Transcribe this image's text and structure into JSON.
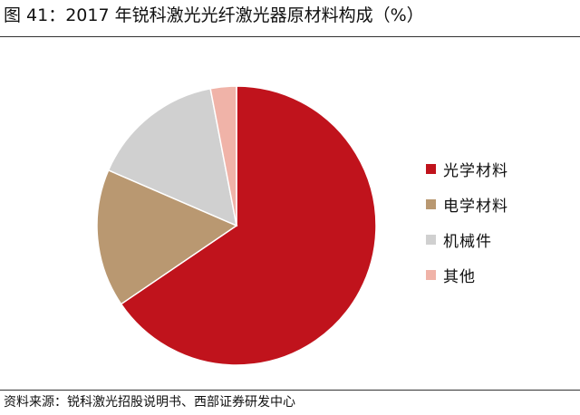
{
  "title": "图 41：2017 年锐科激光光纤激光器原材料构成（%）",
  "source": "资料来源：锐科激光招股说明书、西部证券研发中心",
  "chart_data": {
    "type": "pie",
    "categories": [
      "光学材料",
      "电学材料",
      "机械件",
      "其他"
    ],
    "values": [
      65.5,
      16.0,
      15.5,
      3.0
    ],
    "colors": [
      "#c0131c",
      "#b99871",
      "#d0d0d0",
      "#f0b3a8"
    ],
    "start_angle": "top, clockwise",
    "legend_position": "right"
  }
}
